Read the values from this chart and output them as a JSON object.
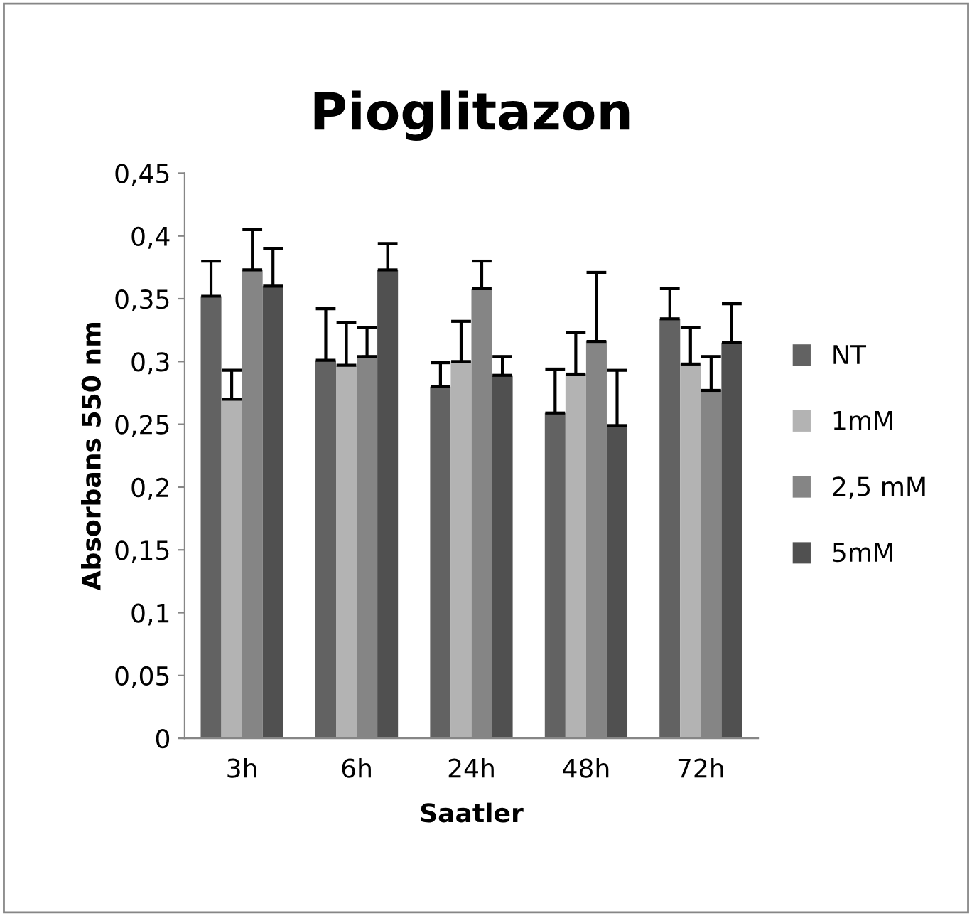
{
  "chart_data": {
    "type": "bar",
    "title": "Pioglitazon",
    "xlabel": "Saatler",
    "ylabel": "Absorbans 550 nm",
    "categories": [
      "3h",
      "6h",
      "24h",
      "48h",
      "72h"
    ],
    "series": [
      {
        "name": "NT",
        "color": "#626262",
        "values": [
          0.352,
          0.301,
          0.28,
          0.259,
          0.334
        ],
        "errors": [
          [
            0.352,
            0.38
          ],
          [
            0.301,
            0.342
          ],
          [
            0.28,
            0.299
          ],
          [
            0.259,
            0.294
          ],
          [
            0.334,
            0.358
          ]
        ]
      },
      {
        "name": "1mM",
        "color": "#b3b3b3",
        "values": [
          0.27,
          0.297,
          0.3,
          0.29,
          0.298
        ],
        "errors": [
          [
            0.27,
            0.293
          ],
          [
            0.297,
            0.331
          ],
          [
            0.3,
            0.332
          ],
          [
            0.29,
            0.323
          ],
          [
            0.298,
            0.327
          ]
        ]
      },
      {
        "name": "2,5 mM",
        "color": "#858585",
        "values": [
          0.373,
          0.304,
          0.358,
          0.316,
          0.277
        ],
        "errors": [
          [
            0.373,
            0.405
          ],
          [
            0.304,
            0.327
          ],
          [
            0.358,
            0.38
          ],
          [
            0.316,
            0.371
          ],
          [
            0.277,
            0.304
          ]
        ]
      },
      {
        "name": "5mM",
        "color": "#505050",
        "values": [
          0.36,
          0.373,
          0.289,
          0.249,
          0.315
        ],
        "errors": [
          [
            0.36,
            0.39
          ],
          [
            0.373,
            0.394
          ],
          [
            0.289,
            0.304
          ],
          [
            0.249,
            0.293
          ],
          [
            0.315,
            0.346
          ]
        ]
      }
    ],
    "ylim": [
      0,
      0.45
    ],
    "yticks": [
      {
        "value": 0,
        "label": "0"
      },
      {
        "value": 0.05,
        "label": "0,05"
      },
      {
        "value": 0.1,
        "label": "0,1"
      },
      {
        "value": 0.15,
        "label": "0,15"
      },
      {
        "value": 0.2,
        "label": "0,2"
      },
      {
        "value": 0.25,
        "label": "0,25"
      },
      {
        "value": 0.3,
        "label": "0,3"
      },
      {
        "value": 0.35,
        "label": "0,35"
      },
      {
        "value": 0.4,
        "label": "0,4"
      },
      {
        "value": 0.45,
        "label": "0,45"
      }
    ],
    "grid": false,
    "legend": "right"
  }
}
